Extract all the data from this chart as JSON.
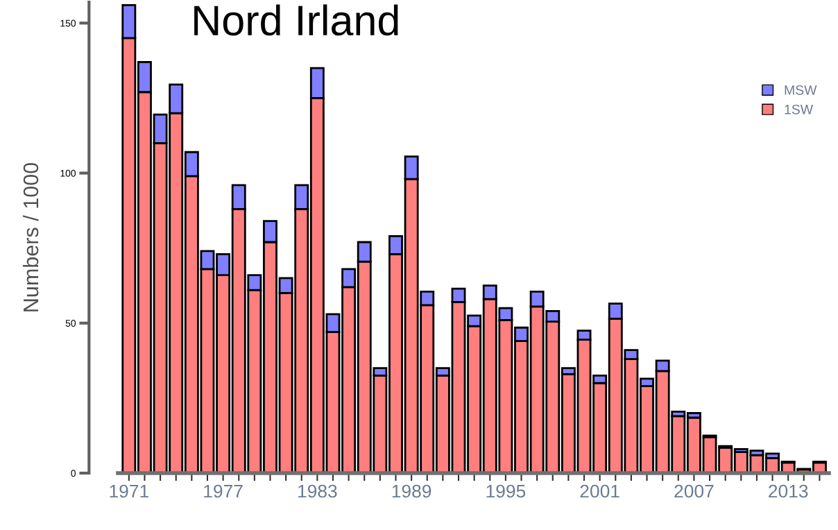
{
  "chart_data": {
    "type": "bar",
    "title": "Nord Irland",
    "ylabel": "Numbers / 1000",
    "stacked": true,
    "categories": [
      "1971",
      null,
      null,
      null,
      null,
      null,
      "1977",
      null,
      null,
      null,
      null,
      null,
      "1983",
      null,
      null,
      null,
      null,
      null,
      "1989",
      null,
      null,
      null,
      null,
      null,
      "1995",
      null,
      null,
      null,
      null,
      null,
      "2001",
      null,
      null,
      null,
      null,
      null,
      "2007",
      null,
      null,
      null,
      null,
      null,
      "2013",
      null,
      null
    ],
    "series": [
      {
        "name": "1SW",
        "color": "#ff7f7f",
        "values": [
          145,
          127,
          110,
          120,
          99,
          68,
          66,
          88,
          61,
          77,
          60,
          88,
          125,
          47,
          62,
          70.5,
          32.5,
          73,
          98,
          56,
          32.5,
          57,
          49,
          58,
          51,
          44,
          55.5,
          50.5,
          33,
          44.5,
          30,
          51.5,
          38,
          29,
          34,
          19,
          18.5,
          12,
          8.5,
          7,
          6,
          5,
          3.5,
          1.2,
          3.5
        ]
      },
      {
        "name": "MSW",
        "color": "#7f7fff",
        "values": [
          11,
          10,
          9.5,
          9.5,
          8,
          6,
          7,
          8,
          5,
          7,
          5,
          8,
          10,
          6,
          6,
          6.5,
          2.5,
          6,
          7.5,
          4.5,
          2.5,
          4.5,
          3.5,
          4.5,
          4,
          4.5,
          5,
          3.5,
          2,
          3,
          2.5,
          5,
          3,
          2.5,
          3.5,
          1.5,
          1.5,
          0.5,
          0.5,
          1,
          1.5,
          1.5,
          0.3,
          0.2,
          0.3
        ]
      }
    ],
    "ylim": [
      0,
      157
    ],
    "yticks": [
      0,
      50,
      100,
      150
    ],
    "legend": "top right",
    "grid": false
  }
}
